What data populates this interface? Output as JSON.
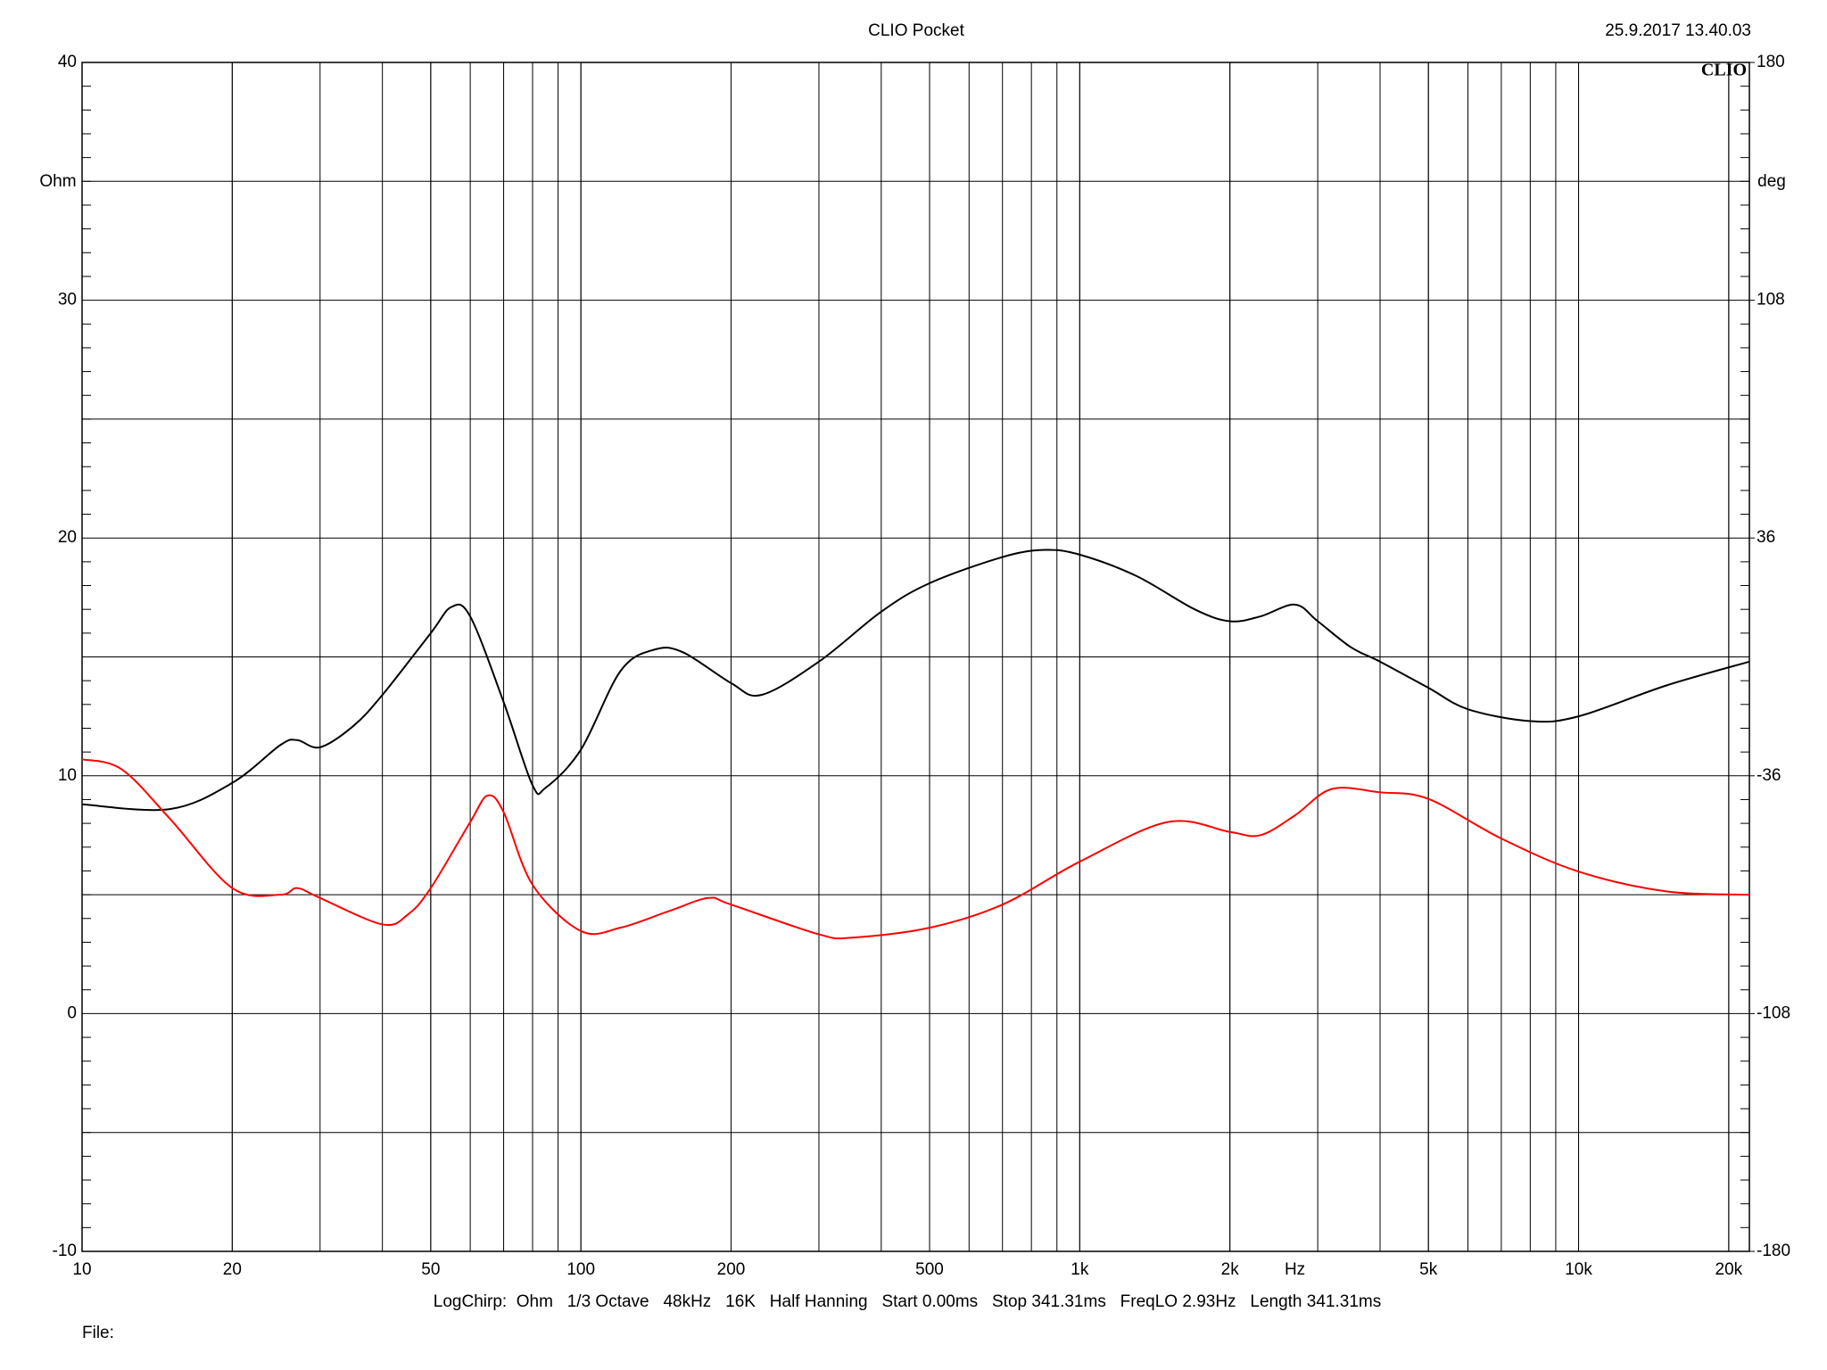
{
  "chart_data": {
    "type": "line",
    "title": "CLIO Pocket",
    "timestamp": "25.9.2017 13.40.03",
    "logo": "CLIO",
    "y_label": "Ohm",
    "y2_label": "deg",
    "x_unit_label": "Hz",
    "footer": "LogChirp:  Ohm   1/3 Octave   48kHz   16K   Half Hanning   Start 0.00ms   Stop 341.31ms   FreqLO 2.93Hz   Length 341.31ms",
    "file_label": "File:",
    "x_log": true,
    "grid": true,
    "xlim": [
      10,
      22000
    ],
    "xticks": [
      10,
      20,
      50,
      100,
      200,
      500,
      {
        "value": 1000,
        "label": "1k"
      },
      {
        "value": 2000,
        "label": "2k"
      },
      {
        "value": 5000,
        "label": "5k"
      },
      {
        "value": 10000,
        "label": "10k"
      },
      {
        "value": 20000,
        "label": "20k"
      }
    ],
    "x_unit_position": 2700,
    "ylim": [
      -10,
      40
    ],
    "yticks": [
      -10,
      0,
      10,
      20,
      30,
      40
    ],
    "y2lim": [
      -180,
      180
    ],
    "y2ticks": [
      -180,
      -108,
      -36,
      36,
      108,
      180
    ],
    "series": [
      {
        "color": "#000000",
        "axis": "y",
        "x": [
          10,
          15,
          20,
          25,
          27,
          30,
          35,
          40,
          50,
          55,
          60,
          70,
          80,
          85,
          100,
          120,
          140,
          160,
          200,
          230,
          300,
          400,
          500,
          700,
          850,
          1000,
          1300,
          1700,
          2000,
          2300,
          2700,
          3000,
          3500,
          4000,
          5000,
          6000,
          8000,
          10000,
          15000,
          22000
        ],
        "values": [
          8.8,
          8.6,
          9.7,
          11.3,
          11.5,
          11.2,
          12.1,
          13.4,
          16.0,
          17.1,
          16.7,
          13.1,
          9.6,
          9.5,
          11.1,
          14.4,
          15.3,
          15.2,
          13.9,
          13.4,
          14.8,
          16.9,
          18.1,
          19.2,
          19.5,
          19.3,
          18.4,
          17.0,
          16.5,
          16.7,
          17.2,
          16.5,
          15.4,
          14.8,
          13.7,
          12.8,
          12.3,
          12.5,
          13.8,
          14.8
        ]
      },
      {
        "color": "#ff0000",
        "axis": "y2",
        "x": [
          10,
          12,
          15,
          20,
          25,
          27,
          30,
          40,
          45,
          50,
          60,
          65,
          70,
          80,
          100,
          120,
          150,
          180,
          200,
          300,
          350,
          500,
          700,
          1000,
          1500,
          2000,
          2300,
          2700,
          3200,
          4000,
          5000,
          7000,
          10000,
          15000,
          22000
        ],
        "values": [
          -31,
          -34,
          -49,
          -70,
          -72,
          -70,
          -73,
          -81,
          -78,
          -70,
          -50,
          -42,
          -47,
          -69,
          -83,
          -82,
          -77,
          -73,
          -75,
          -84,
          -85,
          -82,
          -75,
          -62,
          -50,
          -53,
          -54,
          -48,
          -40,
          -41,
          -43,
          -55,
          -65,
          -71,
          -72
        ]
      }
    ]
  }
}
